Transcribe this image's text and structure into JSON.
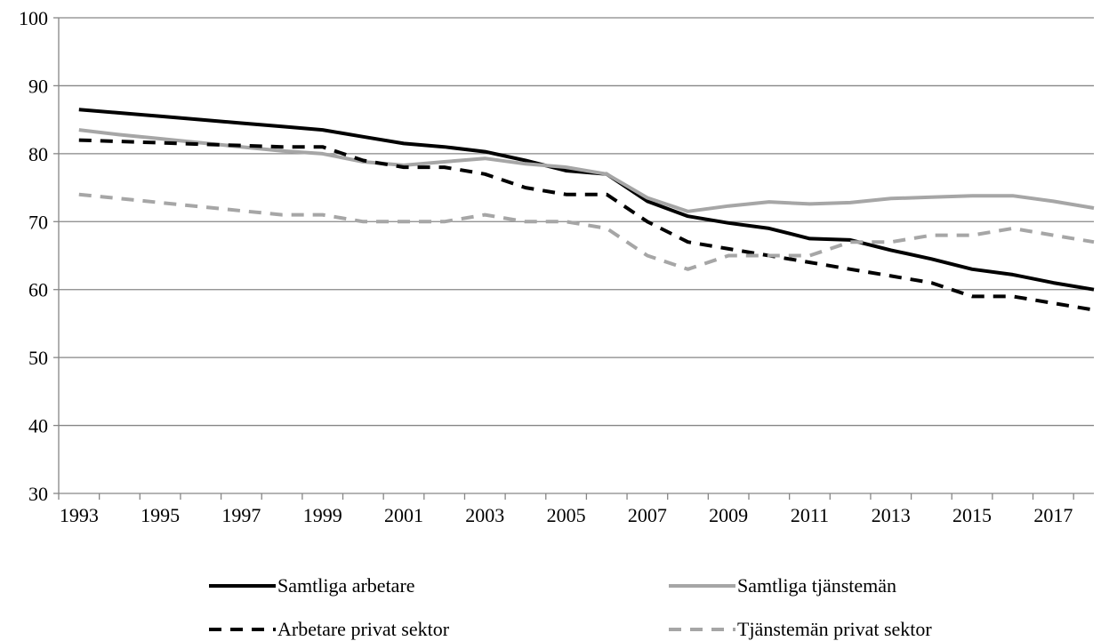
{
  "chart_data": {
    "type": "line",
    "title": "",
    "xlabel": "",
    "ylabel": "",
    "ylim": [
      30,
      100
    ],
    "yticks": [
      30,
      40,
      50,
      60,
      70,
      80,
      90,
      100
    ],
    "x": [
      1993,
      1994,
      1995,
      1996,
      1997,
      1998,
      1999,
      2000,
      2001,
      2002,
      2003,
      2004,
      2005,
      2006,
      2007,
      2008,
      2009,
      2010,
      2011,
      2012,
      2013,
      2014,
      2015,
      2016,
      2017,
      2018
    ],
    "xtick_labels": [
      "1993",
      "1995",
      "1997",
      "1999",
      "2001",
      "2003",
      "2005",
      "2007",
      "2009",
      "2011",
      "2013",
      "2015",
      "2017"
    ],
    "grid": "horizontal",
    "legend_position": "bottom",
    "series": [
      {
        "name": "Samtliga arbetare",
        "color": "#000000",
        "style": "solid",
        "values": [
          86.5,
          86.0,
          85.5,
          85.0,
          84.5,
          84.0,
          83.5,
          82.5,
          81.5,
          81.0,
          80.3,
          79.0,
          77.5,
          77.0,
          73.0,
          70.8,
          69.8,
          69.0,
          67.5,
          67.3,
          65.8,
          64.5,
          63.0,
          62.2,
          61.0,
          60.0
        ]
      },
      {
        "name": "Samtliga tjänstemän",
        "color": "#a6a6a6",
        "style": "solid",
        "values": [
          83.5,
          82.8,
          82.2,
          81.6,
          81.0,
          80.4,
          80.0,
          78.8,
          78.3,
          78.8,
          79.3,
          78.5,
          78.0,
          77.0,
          73.5,
          71.5,
          72.3,
          72.9,
          72.6,
          72.8,
          73.4,
          73.6,
          73.8,
          73.8,
          73.0,
          72.0
        ]
      },
      {
        "name": "Arbetare privat sektor",
        "color": "#000000",
        "style": "dashed",
        "values": [
          82,
          81.8,
          81.6,
          81.4,
          81.2,
          81.0,
          81.0,
          79,
          78,
          78,
          77,
          75,
          74,
          74,
          70,
          67,
          66,
          65,
          64,
          63,
          62,
          61,
          59,
          59,
          58,
          57
        ]
      },
      {
        "name": "Tjänstemän privat sektor",
        "color": "#a6a6a6",
        "style": "dashed",
        "values": [
          74,
          73.4,
          72.8,
          72.2,
          71.6,
          71.0,
          71.0,
          70,
          70,
          70,
          71,
          70,
          70,
          69,
          65,
          63,
          65,
          65,
          65,
          67,
          67,
          68,
          68,
          69,
          68,
          67
        ]
      }
    ]
  }
}
